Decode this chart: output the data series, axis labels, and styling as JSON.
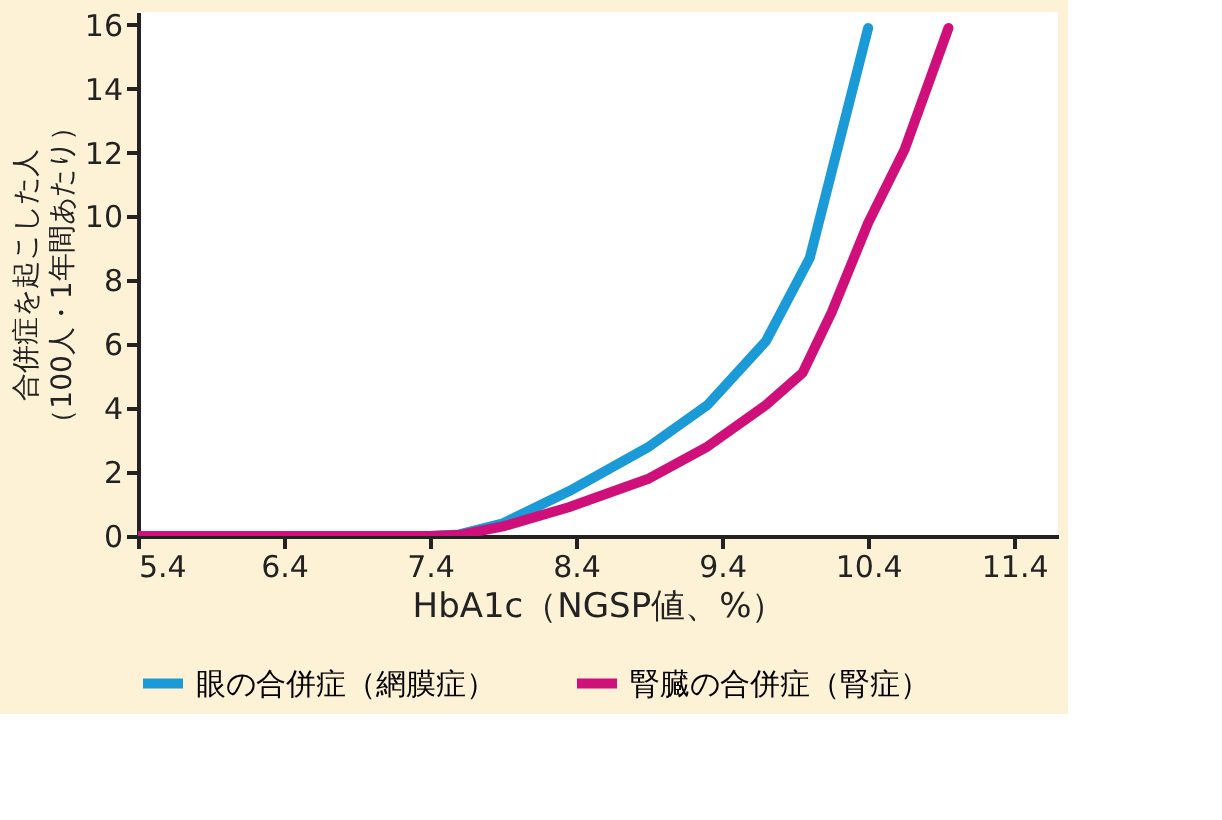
{
  "chart_data": {
    "type": "line",
    "xlabel": "HbA1c（NGSP値、%）",
    "ylabel": "合併症を起こした人（100人・1年間あたり）",
    "xlim": [
      5.4,
      11.7
    ],
    "xticks": [
      5.4,
      6.4,
      7.4,
      8.4,
      9.4,
      10.4,
      11.4
    ],
    "ylim": [
      0,
      16.4
    ],
    "yticks": [
      0,
      2,
      4,
      6,
      8,
      10,
      12,
      14,
      16
    ],
    "grid": false,
    "legend": "bottom",
    "marker": "none",
    "line_style": "solid",
    "series": [
      {
        "name": "眼の合併症（網膜症）",
        "color": "#1a9ad6",
        "x": [
          7.4,
          7.6,
          7.9,
          8.35,
          8.9,
          9.3,
          9.7,
          10.0,
          10.15,
          10.4
        ],
        "values": [
          0,
          0.05,
          0.4,
          1.4,
          2.8,
          4.1,
          6.1,
          8.7,
          11.4,
          15.9
        ]
      },
      {
        "name": "腎臓の合併症（腎症）",
        "color": "#d0107a",
        "x": [
          5.4,
          6.4,
          7.4,
          7.6,
          7.9,
          8.35,
          8.9,
          9.3,
          9.7,
          9.95,
          10.15,
          10.4,
          10.65,
          10.95
        ],
        "values": [
          0,
          0,
          0,
          0.03,
          0.3,
          0.9,
          1.8,
          2.8,
          4.1,
          5.1,
          7.0,
          9.8,
          12.1,
          15.9
        ]
      }
    ]
  }
}
